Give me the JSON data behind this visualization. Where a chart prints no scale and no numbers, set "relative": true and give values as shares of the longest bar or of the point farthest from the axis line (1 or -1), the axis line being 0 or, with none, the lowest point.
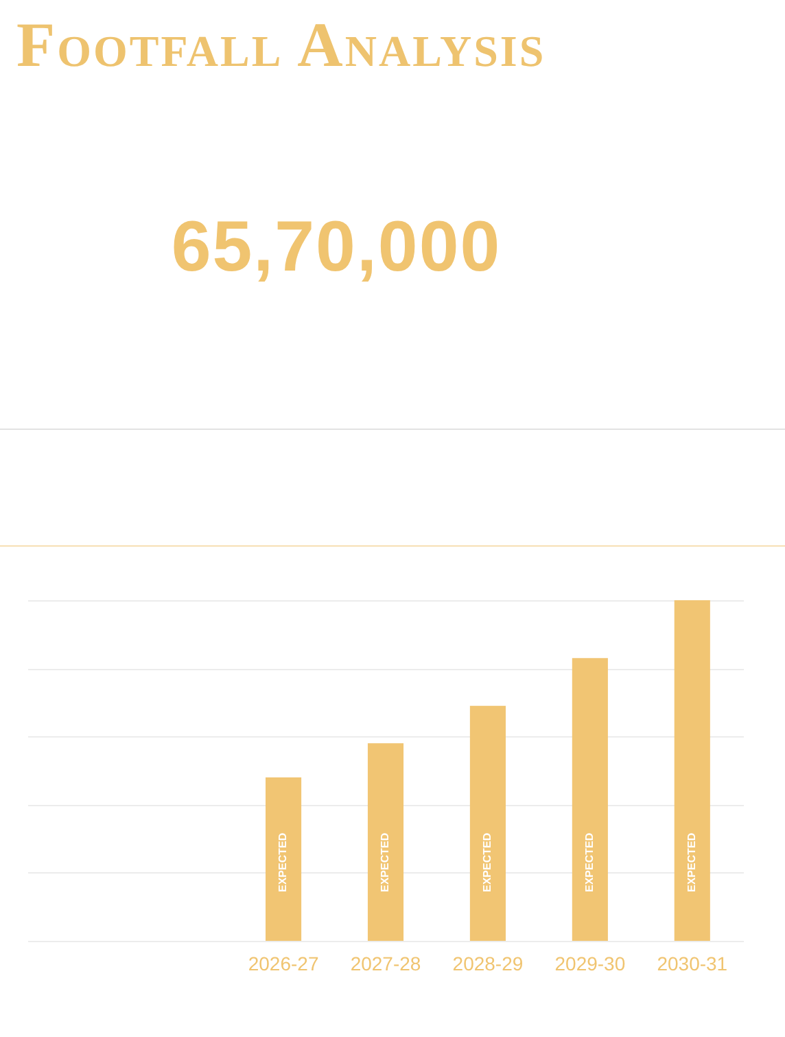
{
  "chart_data": {
    "type": "bar",
    "title": "Footfall Analysis",
    "categories": [
      null,
      null,
      "2026-27",
      "2027-28",
      "2028-29",
      "2029-30",
      "2030-31"
    ],
    "values": [
      null,
      null,
      0.48,
      0.58,
      0.69,
      0.83,
      1
    ],
    "color": "#f1c573",
    "relative": true,
    "grid": "y",
    "annotations": [
      "65,70,000",
      "EXPECTED",
      "EXPECTED",
      "EXPECTED",
      "EXPECTED",
      "EXPECTED"
    ]
  }
}
